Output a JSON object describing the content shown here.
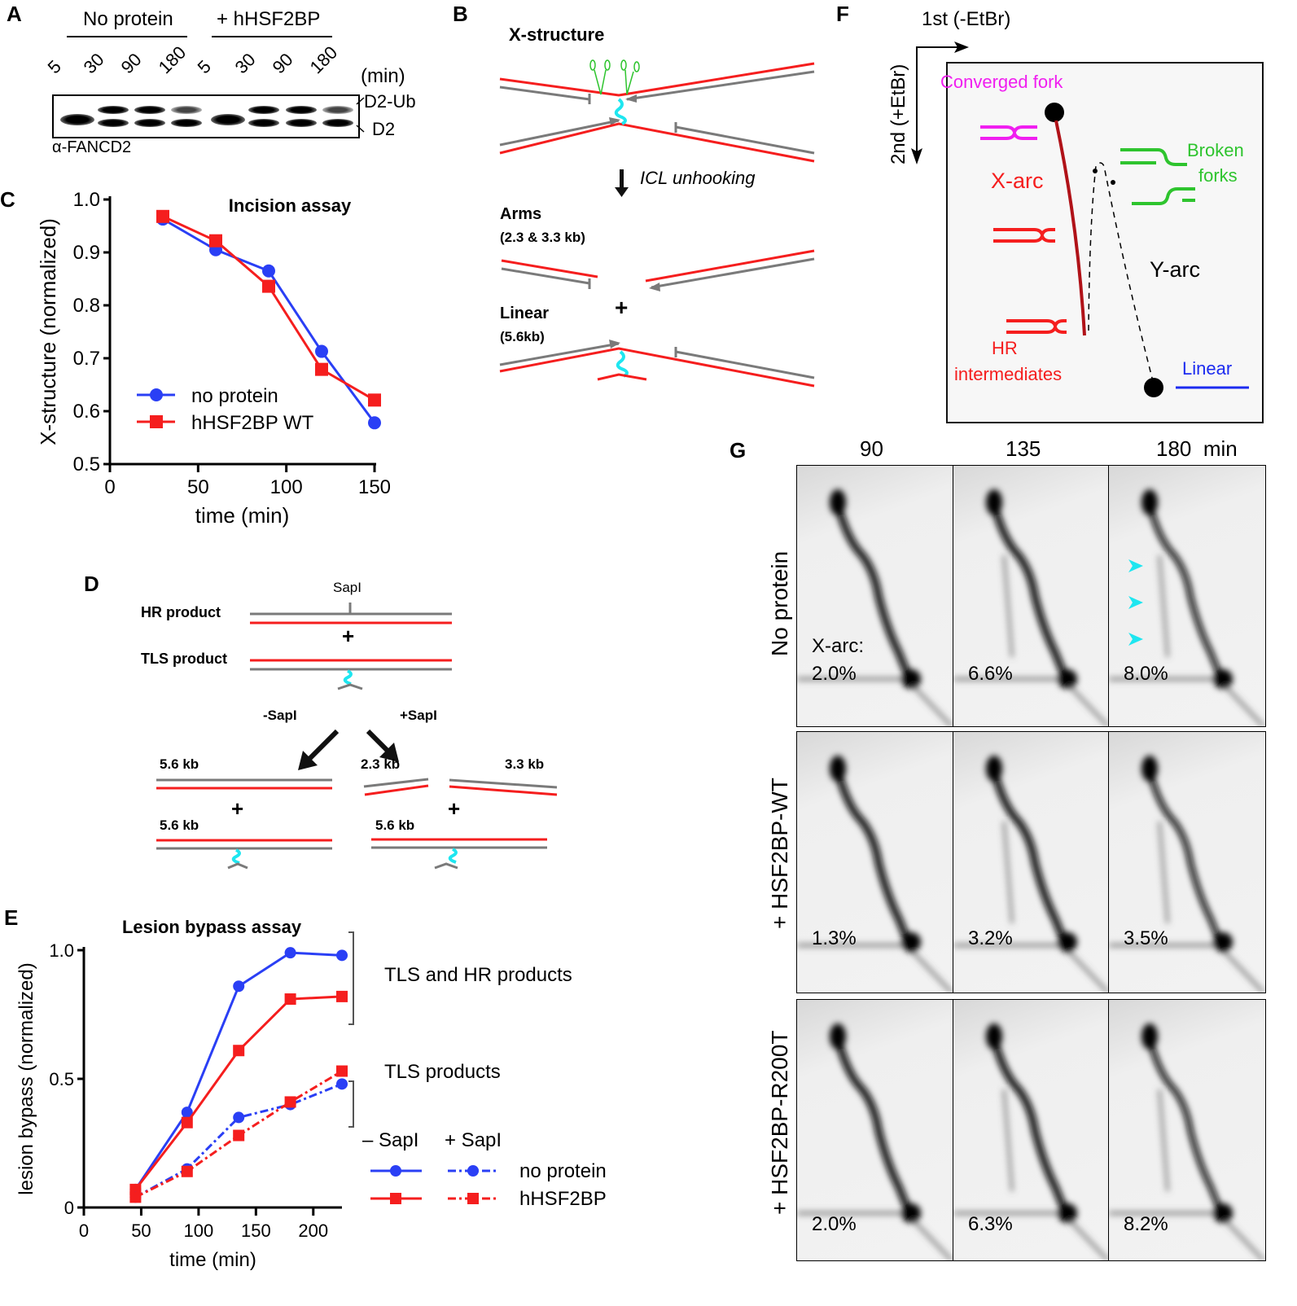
{
  "panels": {
    "A": {
      "label": "A",
      "groups": [
        "No protein",
        "+ hHSF2BP"
      ],
      "lanes": [
        "5",
        "30",
        "90",
        "180",
        "5",
        "30",
        "90",
        "180"
      ],
      "unit": "(min)",
      "bands": [
        "D2-Ub",
        "D2"
      ],
      "antibody": "α-FANCD2"
    },
    "B": {
      "label": "B",
      "title": "X-structure",
      "step": "ICL unhooking",
      "arms_label": "Arms",
      "arms_size": "(2.3 & 3.3 kb)",
      "plus": "+",
      "linear_label": "Linear",
      "linear_size": "(5.6kb)"
    },
    "C": {
      "label": "C"
    },
    "D": {
      "label": "D",
      "site": "SapI",
      "hr_product": "HR product",
      "tls_product": "TLS product",
      "plus": "+",
      "minus_sapi": "-SapI",
      "plus_sapi": "+SapI",
      "left_top_size": "5.6 kb",
      "left_bottom_size": "5.6 kb",
      "right_small": "2.3 kb",
      "right_large": "3.3 kb",
      "right_bottom_size": "5.6 kb"
    },
    "E": {
      "label": "E",
      "bracket_top": "TLS and HR products",
      "bracket_bottom": "TLS products",
      "legend_minus": "– SapI",
      "legend_plus": "+ SapI",
      "legend_series": [
        "no protein",
        "hHSF2BP"
      ]
    },
    "F": {
      "label": "F",
      "first_dim": "1st (-EtBr)",
      "second_dim": "2nd (+EtBr)",
      "converged_fork": "Converged fork",
      "x_arc": "X-arc",
      "y_arc": "Y-arc",
      "broken_forks": [
        "Broken",
        "forks"
      ],
      "hr_intermediates": [
        "HR",
        "intermediates"
      ],
      "linear": "Linear"
    },
    "G": {
      "label": "G",
      "timepoints": [
        "90",
        "135",
        "180  min"
      ],
      "x_arc_label": "X-arc:",
      "rows": [
        {
          "label": "No protein",
          "values": [
            "2.0%",
            "6.6%",
            "8.0%"
          ]
        },
        {
          "label": "+ HSF2BP-WT",
          "values": [
            "1.3%",
            "3.2%",
            "3.5%"
          ]
        },
        {
          "label": "+ HSF2BP-R200T",
          "values": [
            "2.0%",
            "6.3%",
            "8.2%"
          ]
        }
      ]
    }
  },
  "colors": {
    "blue": "#2a3ff5",
    "red": "#f51e1e",
    "grey": "#7a7a7a",
    "cyan": "#1ee6f0",
    "green": "#2ec42e",
    "magenta": "#f01ef0",
    "darkred": "#b01218",
    "navy": "#1c2bf0"
  },
  "chart_data": [
    {
      "type": "line",
      "title": "Incision assay",
      "xlabel": "time (min)",
      "ylabel": "X-structure (normalized)",
      "xlim": [
        0,
        150
      ],
      "ylim": [
        0.5,
        1.0
      ],
      "xticks": [
        "0",
        "50",
        "100",
        "150"
      ],
      "yticks": [
        "0.5",
        "0.6",
        "0.7",
        "0.8",
        "0.9",
        "1.0"
      ],
      "legend": "bottom-left",
      "grid": false,
      "x": [
        30,
        60,
        90,
        120,
        150
      ],
      "series": [
        {
          "name": "no protein",
          "marker": "circle",
          "color": "#2a3ff5",
          "values": [
            0.963,
            0.905,
            0.865,
            0.713,
            0.578
          ]
        },
        {
          "name": "hHSF2BP WT",
          "marker": "square",
          "color": "#f51e1e",
          "values": [
            0.968,
            0.922,
            0.836,
            0.679,
            0.621
          ]
        }
      ]
    },
    {
      "type": "line",
      "title": "Lesion bypass assay",
      "xlabel": "time (min)",
      "ylabel": "lesion bypass (normalized)",
      "xlim": [
        0,
        225
      ],
      "ylim": [
        0,
        1.0
      ],
      "xticks": [
        "0",
        "50",
        "100",
        "150",
        "200"
      ],
      "yticks": [
        "0",
        "0.5",
        "1.0"
      ],
      "legend": "bottom-right",
      "grid": false,
      "x": [
        45,
        90,
        135,
        180,
        225
      ],
      "series": [
        {
          "name": "no protein – SapI",
          "marker": "circle",
          "dash": "solid",
          "color": "#2a3ff5",
          "values": [
            0.07,
            0.37,
            0.86,
            0.99,
            0.98
          ]
        },
        {
          "name": "hHSF2BP – SapI",
          "marker": "square",
          "dash": "solid",
          "color": "#f51e1e",
          "values": [
            0.07,
            0.33,
            0.61,
            0.81,
            0.82
          ]
        },
        {
          "name": "no protein + SapI",
          "marker": "circle",
          "dash": "dashdot",
          "color": "#2a3ff5",
          "values": [
            0.04,
            0.15,
            0.35,
            0.4,
            0.48
          ]
        },
        {
          "name": "hHSF2BP + SapI",
          "marker": "square",
          "dash": "dashdot",
          "color": "#f51e1e",
          "values": [
            0.04,
            0.14,
            0.28,
            0.41,
            0.53
          ]
        }
      ]
    }
  ]
}
